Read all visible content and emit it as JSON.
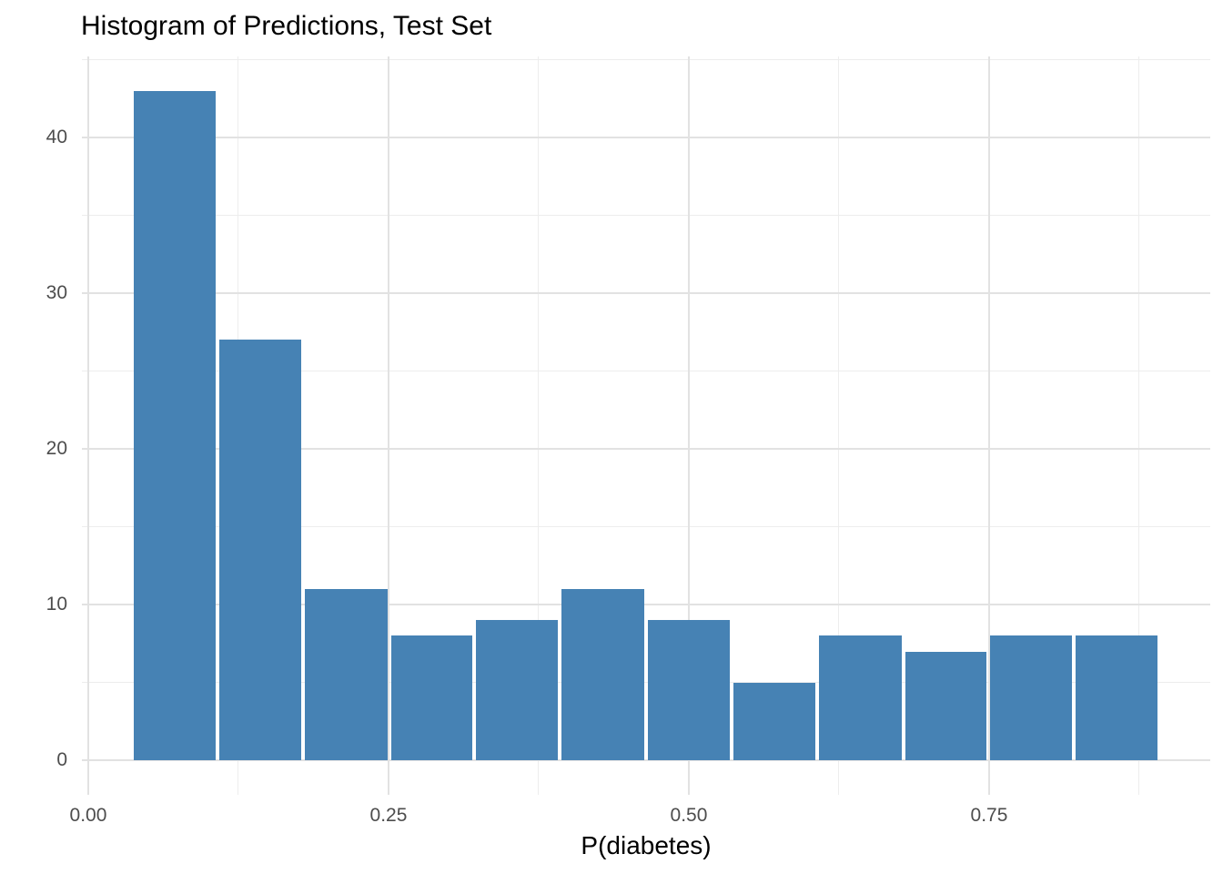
{
  "chart_data": {
    "type": "histogram",
    "title": "Histogram of Predictions, Test Set",
    "xlabel": "P(diabetes)",
    "ylabel": "",
    "bar_color": "#4682b4",
    "background_color": "#ffffff",
    "grid_major_color": "#e2e2e2",
    "grid_minor_color": "#ededed",
    "axis_text_color": "#4d4d4d",
    "title_color": "#000000",
    "grid": true,
    "legend_position": "none",
    "xlim": [
      -0.0053,
      0.9341
    ],
    "ylim": [
      -2.2,
      45.2
    ],
    "x_ticks": {
      "major": [
        {
          "value": 0.0,
          "label": "0.00"
        },
        {
          "value": 0.25,
          "label": "0.25"
        },
        {
          "value": 0.5,
          "label": "0.50"
        },
        {
          "value": 0.75,
          "label": "0.75"
        }
      ],
      "minor_values": [
        0.125,
        0.375,
        0.625,
        0.875
      ]
    },
    "y_ticks": {
      "major": [
        {
          "value": 0,
          "label": "0"
        },
        {
          "value": 10,
          "label": "10"
        },
        {
          "value": 20,
          "label": "20"
        },
        {
          "value": 30,
          "label": "30"
        },
        {
          "value": 40,
          "label": "40"
        }
      ],
      "minor_values": [
        5,
        15,
        25,
        35,
        45
      ]
    },
    "bins": [
      {
        "x0": 0.038,
        "x1": 0.106,
        "count": 43
      },
      {
        "x0": 0.109,
        "x1": 0.177,
        "count": 27
      },
      {
        "x0": 0.18,
        "x1": 0.249,
        "count": 11
      },
      {
        "x0": 0.252,
        "x1": 0.32,
        "count": 8
      },
      {
        "x0": 0.323,
        "x1": 0.391,
        "count": 9
      },
      {
        "x0": 0.394,
        "x1": 0.463,
        "count": 11
      },
      {
        "x0": 0.466,
        "x1": 0.534,
        "count": 9
      },
      {
        "x0": 0.537,
        "x1": 0.605,
        "count": 5
      },
      {
        "x0": 0.608,
        "x1": 0.677,
        "count": 8
      },
      {
        "x0": 0.68,
        "x1": 0.748,
        "count": 7
      },
      {
        "x0": 0.751,
        "x1": 0.819,
        "count": 8
      },
      {
        "x0": 0.822,
        "x1": 0.89,
        "count": 8
      }
    ]
  }
}
